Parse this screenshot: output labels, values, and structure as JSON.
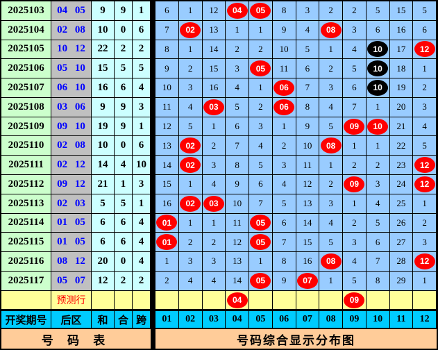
{
  "colors": {
    "period_bg": "#CCFFCC",
    "rear_bg": "#C0C0C0",
    "rear_text": "#0000FF",
    "sum_bg": "#CCFFFF",
    "grid_bg": "#99CCFF",
    "prediction_bg": "#FFFF99",
    "prediction_text": "#FF0000",
    "header_bg": "#00CCFF",
    "footer_bg": "#FFCC99",
    "red_ball": "#FF0000",
    "black_ball": "#000000"
  },
  "chart_data": {
    "type": "table",
    "title": "号码综合显示分布图",
    "columns": [
      "开奖期号",
      "后区",
      "和",
      "合",
      "跨"
    ],
    "number_columns": [
      "01",
      "02",
      "03",
      "04",
      "05",
      "06",
      "07",
      "08",
      "09",
      "10",
      "11",
      "12"
    ],
    "rows": [
      {
        "period": "2025103",
        "rear": "04 05",
        "sum": "9",
        "he": "9",
        "kua": "1",
        "cells": [
          "6",
          "1",
          "12",
          {
            "v": "04",
            "ball": "red"
          },
          {
            "v": "05",
            "ball": "red"
          },
          "8",
          "3",
          "2",
          "2",
          "5",
          "15",
          "5"
        ]
      },
      {
        "period": "2025104",
        "rear": "02 08",
        "sum": "10",
        "he": "0",
        "kua": "6",
        "cells": [
          "7",
          {
            "v": "02",
            "ball": "red"
          },
          "13",
          "1",
          "1",
          "9",
          "4",
          {
            "v": "08",
            "ball": "red"
          },
          "3",
          "6",
          "16",
          "6"
        ]
      },
      {
        "period": "2025105",
        "rear": "10 12",
        "sum": "22",
        "he": "2",
        "kua": "2",
        "cells": [
          "8",
          "1",
          "14",
          "2",
          "2",
          "10",
          "5",
          "1",
          "4",
          {
            "v": "10",
            "ball": "black"
          },
          "17",
          {
            "v": "12",
            "ball": "red"
          }
        ]
      },
      {
        "period": "2025106",
        "rear": "05 10",
        "sum": "15",
        "he": "5",
        "kua": "5",
        "cells": [
          "9",
          "2",
          "15",
          "3",
          {
            "v": "05",
            "ball": "red"
          },
          "11",
          "6",
          "2",
          "5",
          {
            "v": "10",
            "ball": "black"
          },
          "18",
          "1"
        ]
      },
      {
        "period": "2025107",
        "rear": "06 10",
        "sum": "16",
        "he": "6",
        "kua": "4",
        "cells": [
          "10",
          "3",
          "16",
          "4",
          "1",
          {
            "v": "06",
            "ball": "red"
          },
          "7",
          "3",
          "6",
          {
            "v": "10",
            "ball": "black"
          },
          "19",
          "2"
        ]
      },
      {
        "period": "2025108",
        "rear": "03 06",
        "sum": "9",
        "he": "9",
        "kua": "3",
        "cells": [
          "11",
          "4",
          {
            "v": "03",
            "ball": "red"
          },
          "5",
          "2",
          {
            "v": "06",
            "ball": "red"
          },
          "8",
          "4",
          "7",
          "1",
          "20",
          "3"
        ]
      },
      {
        "period": "2025109",
        "rear": "09 10",
        "sum": "19",
        "he": "9",
        "kua": "1",
        "cells": [
          "12",
          "5",
          "1",
          "6",
          "3",
          "1",
          "9",
          "5",
          {
            "v": "09",
            "ball": "red"
          },
          {
            "v": "10",
            "ball": "red"
          },
          "21",
          "4"
        ]
      },
      {
        "period": "2025110",
        "rear": "02 08",
        "sum": "10",
        "he": "0",
        "kua": "6",
        "cells": [
          "13",
          {
            "v": "02",
            "ball": "red"
          },
          "2",
          "7",
          "4",
          "2",
          "10",
          {
            "v": "08",
            "ball": "red"
          },
          "1",
          "1",
          "22",
          "5"
        ]
      },
      {
        "period": "2025111",
        "rear": "02 12",
        "sum": "14",
        "he": "4",
        "kua": "10",
        "cells": [
          "14",
          {
            "v": "02",
            "ball": "red"
          },
          "3",
          "8",
          "5",
          "3",
          "11",
          "1",
          "2",
          "2",
          "23",
          {
            "v": "12",
            "ball": "red"
          }
        ]
      },
      {
        "period": "2025112",
        "rear": "09 12",
        "sum": "21",
        "he": "1",
        "kua": "3",
        "cells": [
          "15",
          "1",
          "4",
          "9",
          "6",
          "4",
          "12",
          "2",
          {
            "v": "09",
            "ball": "red"
          },
          "3",
          "24",
          {
            "v": "12",
            "ball": "red"
          }
        ]
      },
      {
        "period": "2025113",
        "rear": "02 03",
        "sum": "5",
        "he": "5",
        "kua": "1",
        "cells": [
          "16",
          {
            "v": "02",
            "ball": "red"
          },
          {
            "v": "03",
            "ball": "red"
          },
          "10",
          "7",
          "5",
          "13",
          "3",
          "1",
          "4",
          "25",
          "1"
        ]
      },
      {
        "period": "2025114",
        "rear": "01 05",
        "sum": "6",
        "he": "6",
        "kua": "4",
        "cells": [
          {
            "v": "01",
            "ball": "red"
          },
          "1",
          "1",
          "11",
          {
            "v": "05",
            "ball": "red"
          },
          "6",
          "14",
          "4",
          "2",
          "5",
          "26",
          "2"
        ]
      },
      {
        "period": "2025115",
        "rear": "01 05",
        "sum": "6",
        "he": "6",
        "kua": "4",
        "cells": [
          {
            "v": "01",
            "ball": "red"
          },
          "2",
          "2",
          "12",
          {
            "v": "05",
            "ball": "red"
          },
          "7",
          "15",
          "5",
          "3",
          "6",
          "27",
          "3"
        ]
      },
      {
        "period": "2025116",
        "rear": "08 12",
        "sum": "20",
        "he": "0",
        "kua": "4",
        "cells": [
          "1",
          "3",
          "3",
          "13",
          "1",
          "8",
          "16",
          {
            "v": "08",
            "ball": "red"
          },
          "4",
          "7",
          "28",
          {
            "v": "12",
            "ball": "red"
          }
        ]
      },
      {
        "period": "2025117",
        "rear": "05 07",
        "sum": "12",
        "he": "2",
        "kua": "2",
        "cells": [
          "2",
          "4",
          "4",
          "14",
          {
            "v": "05",
            "ball": "red"
          },
          "9",
          {
            "v": "07",
            "ball": "red"
          },
          "1",
          "5",
          "8",
          "29",
          "1"
        ]
      }
    ],
    "prediction": {
      "label": "预测行",
      "cells": [
        "",
        "",
        "",
        {
          "v": "04",
          "ball": "red"
        },
        "",
        "",
        "",
        "",
        {
          "v": "09",
          "ball": "red"
        },
        "",
        "",
        ""
      ]
    },
    "footer": {
      "left": "号 码 表",
      "right": "号码综合显示分布图"
    }
  }
}
